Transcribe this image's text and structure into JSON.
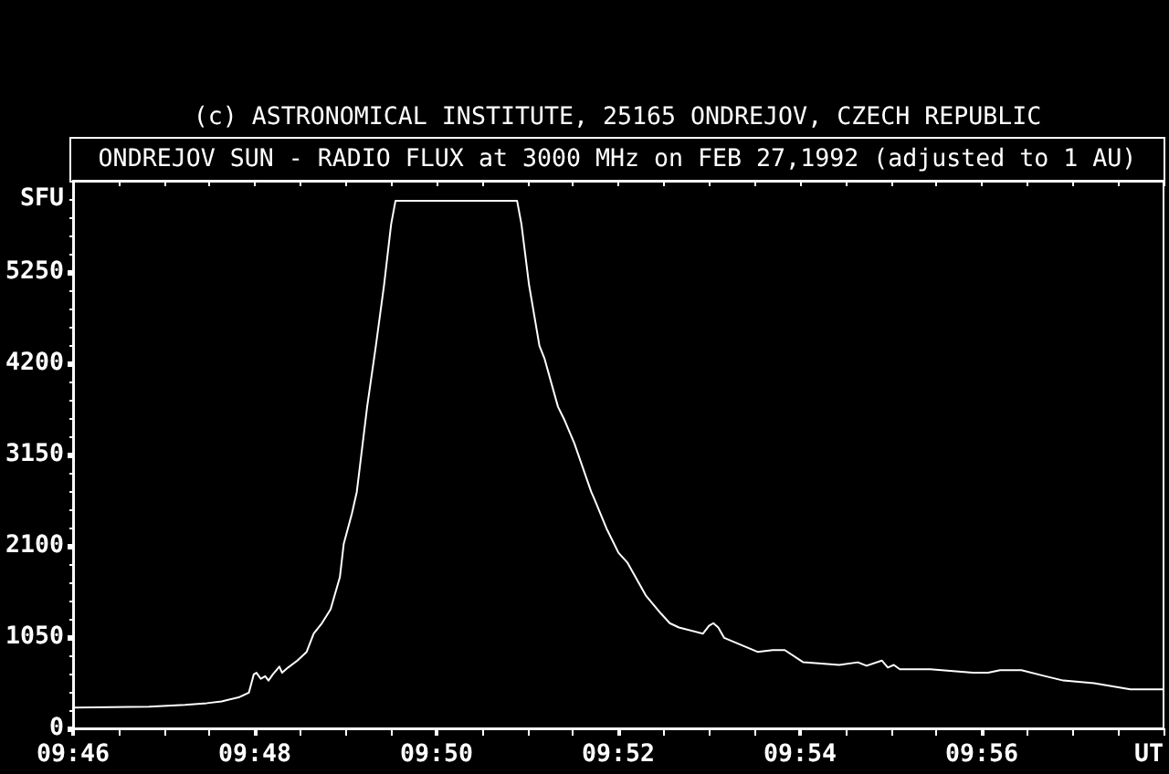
{
  "chart_data": {
    "type": "line",
    "title": "ONDREJOV SUN - RADIO FLUX at 3000 MHz on FEB 27,1992 (adjusted to 1 AU)",
    "annotations": [
      "(c) ASTRONOMICAL INSTITUTE, 25165 ONDREJOV, CZECH REPUBLIC"
    ],
    "xlabel": "UT",
    "ylabel": "SFU",
    "x": [
      9.7667,
      9.7806,
      9.7872,
      9.7912,
      9.7939,
      9.7972,
      9.7989,
      9.7998,
      9.8003,
      9.8011,
      9.8019,
      9.8025,
      9.8033,
      9.8045,
      9.805,
      9.8061,
      9.8078,
      9.8095,
      9.8108,
      9.8122,
      9.8139,
      9.8156,
      9.8163,
      9.8178,
      9.8187,
      9.8206,
      9.8222,
      9.8237,
      9.825,
      9.8258,
      9.8481,
      9.8489,
      9.8503,
      9.8522,
      9.8531,
      9.8556,
      9.8567,
      9.8586,
      9.8617,
      9.8622,
      9.8645,
      9.8667,
      9.8683,
      9.8717,
      9.8745,
      9.8761,
      9.8778,
      9.8822,
      9.8833,
      9.8841,
      9.885,
      9.8861,
      9.8922,
      9.895,
      9.8972,
      9.9006,
      9.9072,
      9.9106,
      9.9122,
      9.915,
      9.9161,
      9.9172,
      9.9183,
      9.9239,
      9.9317,
      9.9345,
      9.9367,
      9.9406,
      9.945,
      9.9483,
      9.9539,
      9.9606,
      9.9665
    ],
    "series": [
      {
        "color": "#ffffff",
        "values": [
          240,
          250,
          270,
          290,
          310,
          360,
          410,
          620,
          640,
          570,
          600,
          550,
          620,
          710,
          640,
          700,
          780,
          880,
          1090,
          1200,
          1370,
          1740,
          2120,
          2470,
          2720,
          3700,
          4400,
          5100,
          5800,
          6070,
          6070,
          5800,
          5100,
          4400,
          4260,
          3700,
          3560,
          3280,
          2720,
          2650,
          2300,
          2020,
          1910,
          1530,
          1320,
          1210,
          1160,
          1090,
          1180,
          1210,
          1160,
          1040,
          880,
          900,
          900,
          760,
          730,
          760,
          720,
          780,
          700,
          730,
          680,
          680,
          640,
          640,
          670,
          670,
          600,
          550,
          520,
          450,
          450
        ]
      }
    ],
    "xlim": [
      9.766667,
      9.966667
    ],
    "xticks": [
      {
        "value": 9.766667,
        "label": "09:46"
      },
      {
        "value": 9.775,
        "label": null
      },
      {
        "value": 9.783333,
        "label": null
      },
      {
        "value": 9.791667,
        "label": null
      },
      {
        "value": 9.8,
        "label": "09:48"
      },
      {
        "value": 9.808333,
        "label": null
      },
      {
        "value": 9.816667,
        "label": null
      },
      {
        "value": 9.825,
        "label": null
      },
      {
        "value": 9.833333,
        "label": "09:50"
      },
      {
        "value": 9.841667,
        "label": null
      },
      {
        "value": 9.85,
        "label": null
      },
      {
        "value": 9.858333,
        "label": null
      },
      {
        "value": 9.866667,
        "label": "09:52"
      },
      {
        "value": 9.875,
        "label": null
      },
      {
        "value": 9.883333,
        "label": null
      },
      {
        "value": 9.891667,
        "label": null
      },
      {
        "value": 9.9,
        "label": "09:54"
      },
      {
        "value": 9.908333,
        "label": null
      },
      {
        "value": 9.916667,
        "label": null
      },
      {
        "value": 9.925,
        "label": null
      },
      {
        "value": 9.933333,
        "label": "09:56"
      },
      {
        "value": 9.941667,
        "label": null
      },
      {
        "value": 9.95,
        "label": null
      },
      {
        "value": 9.958333,
        "label": null
      },
      {
        "value": 9.966667,
        "label": null
      }
    ],
    "ylim": [
      0,
      6300
    ],
    "yticks": [
      0,
      {
        "value": 210,
        "label": null
      },
      {
        "value": 420,
        "label": null
      },
      {
        "value": 630,
        "label": null
      },
      {
        "value": 840,
        "label": null
      },
      1050,
      {
        "value": 1260,
        "label": null
      },
      {
        "value": 1470,
        "label": null
      },
      {
        "value": 1680,
        "label": null
      },
      {
        "value": 1890,
        "label": null
      },
      2100,
      {
        "value": 2310,
        "label": null
      },
      {
        "value": 2520,
        "label": null
      },
      {
        "value": 2730,
        "label": null
      },
      {
        "value": 2940,
        "label": null
      },
      3150,
      {
        "value": 3360,
        "label": null
      },
      {
        "value": 3570,
        "label": null
      },
      {
        "value": 3780,
        "label": null
      },
      {
        "value": 3990,
        "label": null
      },
      4200,
      {
        "value": 4410,
        "label": null
      },
      {
        "value": 4620,
        "label": null
      },
      {
        "value": 4830,
        "label": null
      },
      {
        "value": 5040,
        "label": null
      },
      5250,
      {
        "value": 5460,
        "label": null
      },
      {
        "value": 5670,
        "label": null
      },
      {
        "value": 5880,
        "label": null
      },
      {
        "value": 6090,
        "label": null
      }
    ]
  }
}
